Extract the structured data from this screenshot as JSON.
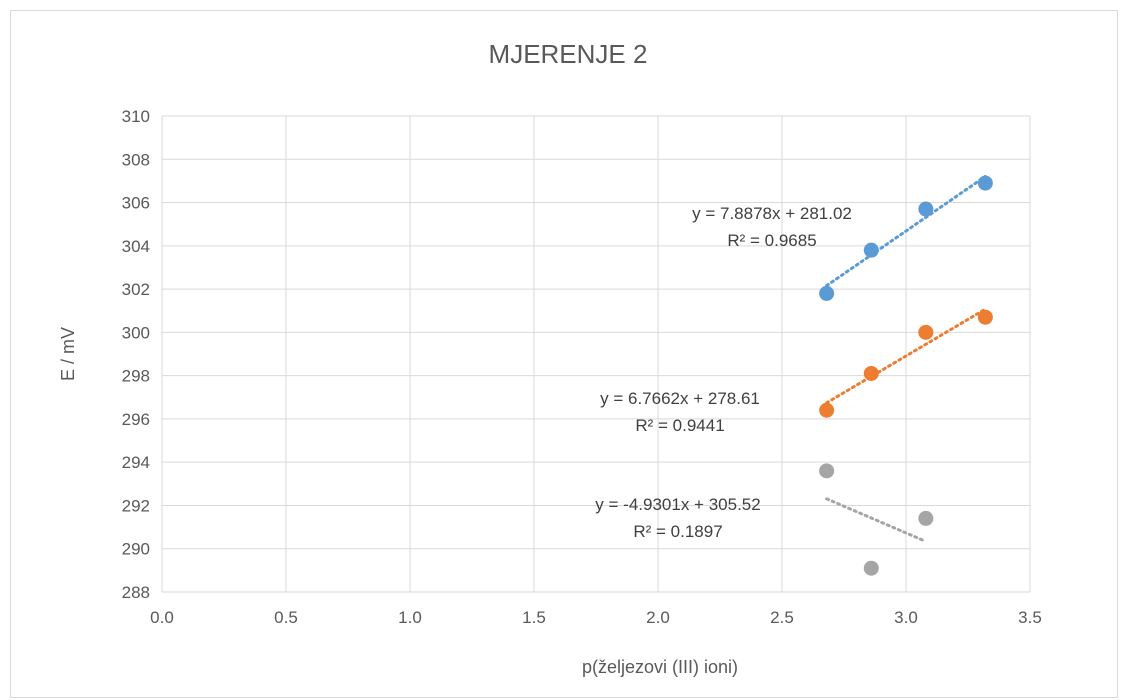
{
  "chart_data": {
    "type": "scatter",
    "title": "MJERENJE 2",
    "xlabel": "p(željezovi (III) ioni)",
    "ylabel": "E / mV",
    "xlim": [
      0,
      3.5
    ],
    "ylim": [
      288,
      310
    ],
    "x_ticks": [
      "0.0",
      "0.5",
      "1.0",
      "1.5",
      "2.0",
      "2.5",
      "3.0",
      "3.5"
    ],
    "y_ticks": [
      "288",
      "290",
      "292",
      "294",
      "296",
      "298",
      "300",
      "302",
      "304",
      "306",
      "308",
      "310"
    ],
    "x_tick_values": [
      0,
      0.5,
      1.0,
      1.5,
      2.0,
      2.5,
      3.0,
      3.5
    ],
    "y_tick_values": [
      288,
      290,
      292,
      294,
      296,
      298,
      300,
      302,
      304,
      306,
      308,
      310
    ],
    "grid": true,
    "legend": "none",
    "series": [
      {
        "color": "#5b9bd5",
        "points": [
          [
            2.68,
            301.8
          ],
          [
            2.86,
            303.8
          ],
          [
            3.08,
            305.7
          ],
          [
            3.32,
            306.9
          ]
        ],
        "trendline": {
          "slope": 7.8878,
          "intercept": 281.02,
          "x_range": [
            2.68,
            3.32
          ]
        },
        "equation": "y = 7.8878x + 281.02",
        "r_squared": "R² = 0.9685"
      },
      {
        "color": "#ed7d31",
        "points": [
          [
            2.68,
            296.4
          ],
          [
            2.86,
            298.1
          ],
          [
            3.08,
            300.0
          ],
          [
            3.32,
            300.7
          ]
        ],
        "trendline": {
          "slope": 6.7662,
          "intercept": 278.61,
          "x_range": [
            2.68,
            3.32
          ]
        },
        "equation": "y = 6.7662x + 278.61",
        "r_squared": "R² = 0.9441"
      },
      {
        "color": "#a5a5a5",
        "points": [
          [
            2.68,
            293.6
          ],
          [
            2.86,
            289.1
          ],
          [
            3.08,
            291.4
          ]
        ],
        "trendline": {
          "slope": -4.9301,
          "intercept": 305.52,
          "x_range": [
            2.68,
            3.08
          ]
        },
        "equation": "y = -4.9301x + 305.52",
        "r_squared": "R² = 0.1897"
      }
    ]
  }
}
